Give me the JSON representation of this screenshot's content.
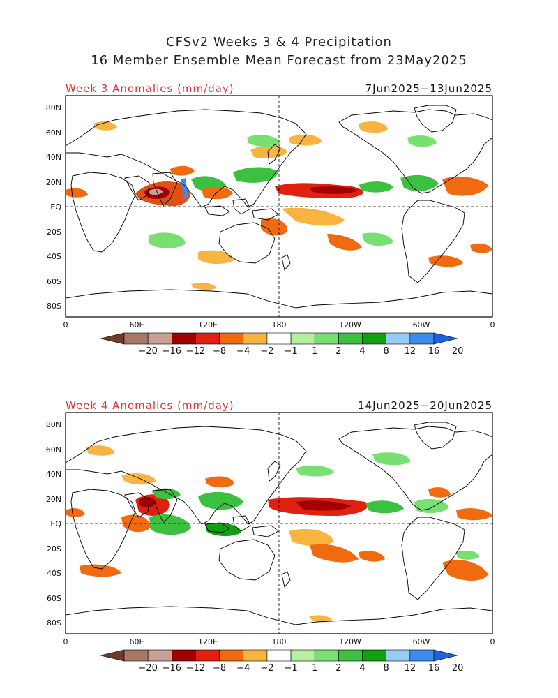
{
  "title": {
    "line1": "CFSv2 Weeks 3 & 4 Precipitation",
    "line2": "16 Member Ensemble Mean Forecast from 23May2025"
  },
  "panels": [
    {
      "id": "week3",
      "label": "Week 3 Anomalies (mm/day)",
      "label_color": "#e03030",
      "date_range": "7Jun2025−13Jun2025"
    },
    {
      "id": "week4",
      "label": "Week 4 Anomalies (mm/day)",
      "label_color": "#e03030",
      "date_range": "14Jun2025−20Jun2025"
    }
  ],
  "axes": {
    "lat_ticks": [
      "80N",
      "60N",
      "40N",
      "20N",
      "EQ",
      "20S",
      "40S",
      "60S",
      "80S"
    ],
    "lon_ticks": [
      "0",
      "60E",
      "120E",
      "180",
      "120W",
      "60W",
      "0"
    ]
  },
  "colorbar": {
    "labels": [
      "−20",
      "−16",
      "−12",
      "−8",
      "−4",
      "−2",
      "−1",
      "1",
      "2",
      "4",
      "8",
      "12",
      "16",
      "20"
    ],
    "colors": [
      "#6e3a2a",
      "#a87866",
      "#c8a094",
      "#a00000",
      "#e02010",
      "#f06a10",
      "#f8b440",
      "#ffffff",
      "#b4f0a0",
      "#78e070",
      "#3cc040",
      "#10a010",
      "#98ccf8",
      "#3c8cf0",
      "#2060e0"
    ]
  }
}
